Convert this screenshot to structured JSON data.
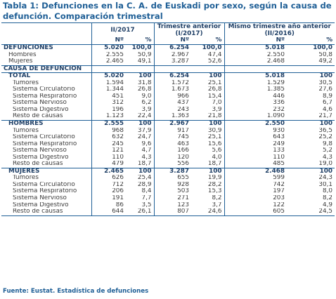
{
  "title": "Tabla 1: Defunciones en la C. A. de Euskadi por sexo, según la causa de defunción. Comparación trimestral",
  "columns": {
    "groups": [
      "II/2017",
      "Trimestre anterior\n(I/2017)",
      "Mismo trimestre año anterior\n(II/2016)"
    ],
    "sub": [
      "Nº",
      "%",
      "Nº",
      "%",
      "Nº",
      "%"
    ]
  },
  "rows": [
    {
      "label": "DEFUNCIONES",
      "style": "bold",
      "indent": 0,
      "values": [
        "5.020",
        "100,0",
        "6.254",
        "100,0",
        "5.018",
        "100,0"
      ]
    },
    {
      "label": "Hombres",
      "style": "normal",
      "indent": 1,
      "values": [
        "2.555",
        "50,9",
        "2.967",
        "47,4",
        "2.550",
        "50,8"
      ]
    },
    {
      "label": "Mujeres",
      "style": "normal",
      "indent": 1,
      "values": [
        "2.465",
        "49,1",
        "3.287",
        "52,6",
        "2.468",
        "49,2"
      ]
    },
    {
      "label": "CAUSA DE DEFUNCIÓN",
      "style": "cat",
      "indent": 0,
      "values": [
        "",
        "",
        "",
        "",
        "",
        ""
      ]
    },
    {
      "label": "TOTAL",
      "style": "bold",
      "indent": 1,
      "values": [
        "5.020",
        "100",
        "6.254",
        "100",
        "5.018",
        "100"
      ]
    },
    {
      "label": "Tumores",
      "style": "normal",
      "indent": 2,
      "values": [
        "1.594",
        "31,8",
        "1.572",
        "25,1",
        "1.529",
        "30,5"
      ]
    },
    {
      "label": "Sistema Circulatorio",
      "style": "normal",
      "indent": 2,
      "values": [
        "1.344",
        "26,8",
        "1.673",
        "26,8",
        "1.385",
        "27,6"
      ]
    },
    {
      "label": "Sistema Respiratorio",
      "style": "normal",
      "indent": 2,
      "values": [
        "451",
        "9,0",
        "966",
        "15,4",
        "446",
        "8,9"
      ]
    },
    {
      "label": "Sistema Nervioso",
      "style": "normal",
      "indent": 2,
      "values": [
        "312",
        "6,2",
        "437",
        "7,0",
        "336",
        "6,7"
      ]
    },
    {
      "label": "Sistema Digestivo",
      "style": "normal",
      "indent": 2,
      "values": [
        "196",
        "3,9",
        "243",
        "3,9",
        "232",
        "4,6"
      ]
    },
    {
      "label": "Resto de causas",
      "style": "normal",
      "indent": 2,
      "values": [
        "1.123",
        "22,4",
        "1.363",
        "21,8",
        "1.090",
        "21,7"
      ]
    },
    {
      "label": "HOMBRES",
      "style": "bold",
      "indent": 1,
      "values": [
        "2.555",
        "100",
        "2.967",
        "100",
        "2.550",
        "100"
      ]
    },
    {
      "label": "Tumores",
      "style": "normal",
      "indent": 2,
      "values": [
        "968",
        "37,9",
        "917",
        "30,9",
        "930",
        "36,5"
      ]
    },
    {
      "label": "Sistema Circulatorio",
      "style": "normal",
      "indent": 2,
      "values": [
        "632",
        "24,7",
        "745",
        "25,1",
        "643",
        "25,2"
      ]
    },
    {
      "label": "Sistema Respiratorio",
      "style": "normal",
      "indent": 2,
      "values": [
        "245",
        "9,6",
        "463",
        "15,6",
        "249",
        "9,8"
      ]
    },
    {
      "label": "Sistema Nervioso",
      "style": "normal",
      "indent": 2,
      "values": [
        "121",
        "4,7",
        "166",
        "5,6",
        "133",
        "5,2"
      ]
    },
    {
      "label": "Sistema Digestivo",
      "style": "normal",
      "indent": 2,
      "values": [
        "110",
        "4,3",
        "120",
        "4,0",
        "110",
        "4,3"
      ]
    },
    {
      "label": "Resto de causas",
      "style": "normal",
      "indent": 2,
      "values": [
        "479",
        "18,7",
        "556",
        "18,7",
        "485",
        "19,0"
      ]
    },
    {
      "label": "MUJERES",
      "style": "bold",
      "indent": 1,
      "values": [
        "2.465",
        "100",
        "3.287",
        "100",
        "2.468",
        "100"
      ]
    },
    {
      "label": "Tumores",
      "style": "normal",
      "indent": 2,
      "values": [
        "626",
        "25,4",
        "655",
        "19,9",
        "599",
        "24,3"
      ]
    },
    {
      "label": "Sistema Circulatorio",
      "style": "normal",
      "indent": 2,
      "values": [
        "712",
        "28,9",
        "928",
        "28,2",
        "742",
        "30,1"
      ]
    },
    {
      "label": "Sistema Respiratorio",
      "style": "normal",
      "indent": 2,
      "values": [
        "206",
        "8,4",
        "503",
        "15,3",
        "197",
        "8,0"
      ]
    },
    {
      "label": "Sistema Nervioso",
      "style": "normal",
      "indent": 2,
      "values": [
        "191",
        "7,7",
        "271",
        "8,2",
        "203",
        "8,2"
      ]
    },
    {
      "label": "Sistema Digestivo",
      "style": "normal",
      "indent": 2,
      "values": [
        "86",
        "3,5",
        "123",
        "3,7",
        "122",
        "4,9"
      ]
    },
    {
      "label": "Resto de causas",
      "style": "normal",
      "indent": 2,
      "values": [
        "644",
        "26,1",
        "807",
        "24,6",
        "605",
        "24,5"
      ]
    }
  ],
  "source": "Fuente: Eustat. Estadística de defunciones",
  "colors": {
    "accent": "#1f5f96",
    "heading_text": "#1f3f66",
    "body_text": "#3b3b3b"
  }
}
